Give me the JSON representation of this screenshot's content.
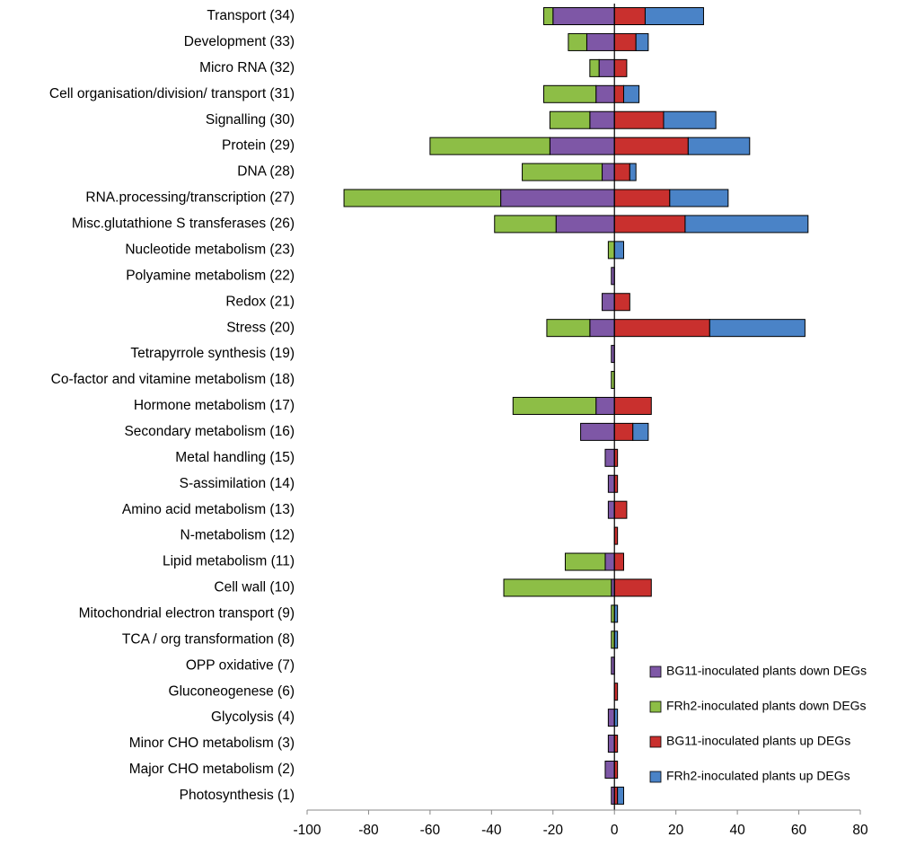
{
  "chart_data": {
    "type": "bar",
    "orientation": "horizontal",
    "stacked": true,
    "categories": [
      "Transport (34)",
      "Development (33)",
      "Micro RNA (32)",
      "Cell organisation/division/ transport (31)",
      "Signalling (30)",
      "Protein (29)",
      "DNA (28)",
      "RNA.processing/transcription (27)",
      "Misc.glutathione S transferases (26)",
      "Nucleotide metabolism (23)",
      "Polyamine metabolism (22)",
      "Redox (21)",
      "Stress (20)",
      "Tetrapyrrole synthesis (19)",
      "Co-factor and vitamine metabolism (18)",
      "Hormone metabolism (17)",
      "Secondary metabolism (16)",
      "Metal handling (15)",
      "S-assimilation (14)",
      "Amino acid metabolism (13)",
      "N-metabolism (12)",
      "Lipid metabolism (11)",
      "Cell wall (10)",
      "Mitochondrial electron transport (9)",
      "TCA / org transformation (8)",
      "OPP oxidative (7)",
      "Gluconeogenese (6)",
      "Glycolysis (4)",
      "Minor CHO metabolism (3)",
      "Major CHO metabolism (2)",
      "Photosynthesis (1)"
    ],
    "series": [
      {
        "name": "BG11-inoculated plants down DEGs",
        "color": "#7e57a6",
        "values": [
          -20,
          -9,
          -5,
          -6,
          -8,
          -21,
          -4,
          -37,
          -19,
          0,
          -1,
          -4,
          -8,
          -1,
          0,
          -6,
          -11,
          -3,
          -2,
          -2,
          0,
          -3,
          -1,
          0,
          0,
          -1,
          0,
          -2,
          -2,
          -3,
          -1
        ]
      },
      {
        "name": "FRh2-inoculated plants down DEGs",
        "color": "#8dbe46",
        "values": [
          -3,
          -6,
          -3,
          -17,
          -13,
          -39,
          -26,
          -51,
          -20,
          -2,
          0,
          0,
          -14,
          0,
          -1,
          -27,
          0,
          0,
          0,
          0,
          0,
          -13,
          -35,
          -1,
          -1,
          0,
          0,
          0,
          0,
          0,
          0
        ]
      },
      {
        "name": "BG11-inoculated plants up DEGs",
        "color": "#c9302e",
        "values": [
          10,
          7,
          4,
          3,
          16,
          24,
          5,
          18,
          23,
          0,
          0,
          5,
          31,
          0,
          0,
          12,
          6,
          1,
          1,
          4,
          1,
          3,
          12,
          0,
          0,
          0,
          1,
          0,
          1,
          1,
          1
        ]
      },
      {
        "name": "FRh2-inoculated plants up DEGs",
        "color": "#4a83c7",
        "values": [
          19,
          4,
          0,
          5,
          17,
          20,
          2,
          19,
          40,
          3,
          0,
          0,
          31,
          0,
          0,
          0,
          5,
          0,
          0,
          0,
          0,
          0,
          0,
          1,
          1,
          0,
          0,
          1,
          0,
          0,
          2
        ]
      }
    ],
    "xlim": [
      -100,
      80
    ],
    "xticks": [
      -100,
      -80,
      -60,
      -40,
      -20,
      0,
      20,
      40,
      60,
      80
    ]
  }
}
